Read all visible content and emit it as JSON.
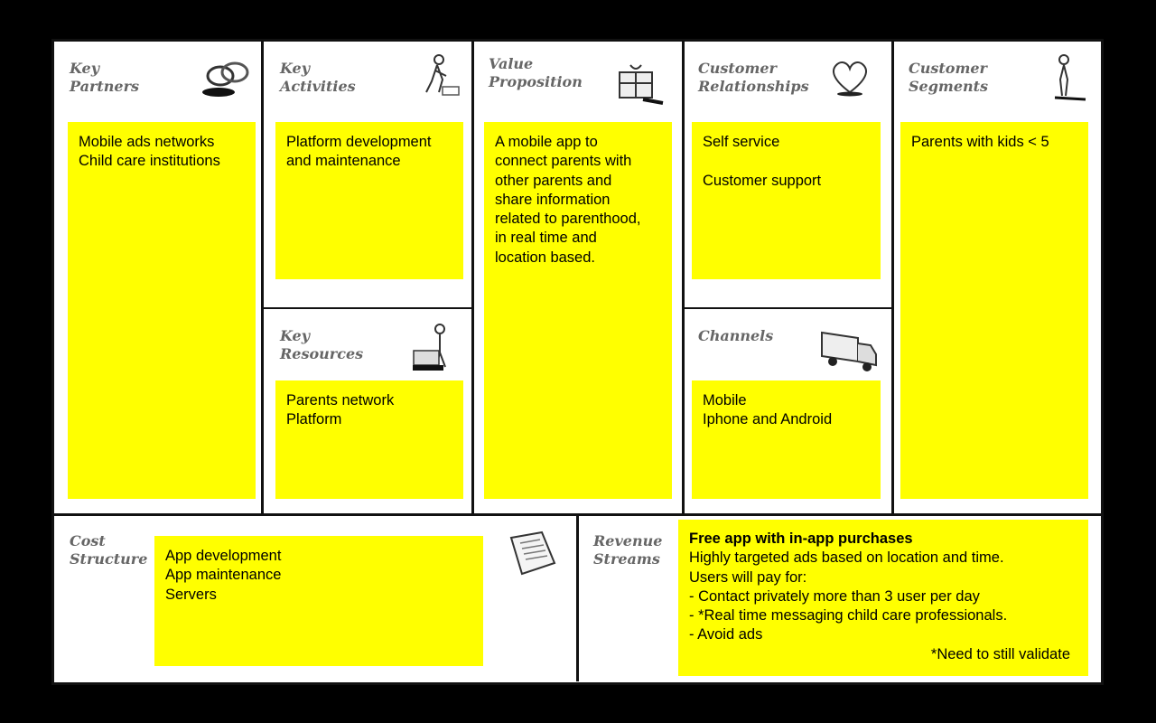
{
  "canvas": {
    "key_partners": {
      "title": "Key\nPartners",
      "icon": "chain-links-icon",
      "note": "Mobile ads networks\nChild care institutions"
    },
    "key_activities": {
      "title": "Key\nActivities",
      "icon": "worker-icon",
      "note": "Platform development\nand maintenance"
    },
    "key_resources": {
      "title": "Key\nResources",
      "icon": "worker-with-cart-icon",
      "note": "Parents network\nPlatform"
    },
    "value_proposition": {
      "title": "Value\nProposition",
      "icon": "gift-icon",
      "note": "A mobile app to\nconnect parents with\nother parents and\nshare information\nrelated to parenthood,\nin real time and\nlocation based."
    },
    "customer_relationships": {
      "title": "Customer\nRelationships",
      "icon": "heart-icon",
      "note": "Self service\n\nCustomer support"
    },
    "channels": {
      "title": "Channels",
      "icon": "truck-icon",
      "note": "Mobile\nIphone and Android"
    },
    "customer_segments": {
      "title": "Customer\nSegments",
      "icon": "person-icon",
      "note": "Parents with kids < 5"
    },
    "cost_structure": {
      "title": "Cost\nStructure",
      "icon": "price-tag-icon",
      "note": "App development\nApp maintenance\nServers"
    },
    "revenue_streams": {
      "title": "Revenue\nStreams",
      "heading": "Free app with in-app purchases",
      "note": "Highly targeted ads based on location and time.\nUsers will pay for:\n- Contact privately more than 3 user per day\n- *Real time messaging child care professionals.\n- Avoid ads",
      "footnote": "*Need to still validate"
    }
  },
  "colors": {
    "note": "#ffff00",
    "title": "#666666",
    "border": "#111111"
  }
}
